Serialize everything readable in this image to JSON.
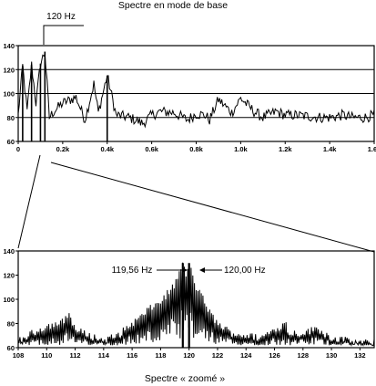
{
  "chart_data": [
    {
      "type": "line",
      "title": "Spectre en mode de base",
      "xlabel": "",
      "ylabel": "",
      "xlim": [
        0,
        1600
      ],
      "ylim": [
        60,
        140
      ],
      "x_tick_labels": [
        "0",
        "0.2k",
        "0.4k",
        "0.6k",
        "0.8k",
        "1.0k",
        "1.2k",
        "1.4k",
        "1.6k"
      ],
      "y_tick_labels": [
        "60",
        "80",
        "100",
        "120",
        "140"
      ],
      "reference_lines_y": [
        80,
        100,
        120
      ],
      "grid": false,
      "annotations": [
        {
          "text": "120 Hz",
          "x": 120
        }
      ],
      "series": [
        {
          "x": [
            0,
            20,
            40,
            60,
            80,
            100,
            120,
            140,
            160,
            200,
            260,
            300,
            340,
            360,
            400,
            440,
            500,
            560,
            600,
            640,
            700,
            760,
            800,
            840,
            860,
            900,
            960,
            1000,
            1060,
            1100,
            1160,
            1200,
            1240,
            1300,
            1360,
            1400,
            1460,
            1500,
            1560,
            1600
          ],
          "values": [
            82,
            123,
            85,
            124,
            92,
            125,
            135,
            80,
            85,
            92,
            97,
            78,
            108,
            84,
            115,
            82,
            80,
            75,
            82,
            85,
            84,
            78,
            83,
            82,
            78,
            95,
            84,
            96,
            85,
            80,
            85,
            82,
            82,
            81,
            80,
            80,
            82,
            80,
            80,
            82
          ]
        }
      ]
    },
    {
      "type": "line",
      "title": "Spectre « zoomé »",
      "xlabel": "",
      "ylabel": "",
      "xlim": [
        108,
        133
      ],
      "ylim": [
        60,
        140
      ],
      "x_tick_labels": [
        "108",
        "110",
        "112",
        "114",
        "116",
        "118",
        "120",
        "122",
        "124",
        "126",
        "128",
        "130",
        "132"
      ],
      "y_tick_labels": [
        "60",
        "80",
        "100",
        "120",
        "140"
      ],
      "grid": false,
      "annotations": [
        {
          "text": "119,56 Hz",
          "x": 119.56
        },
        {
          "text": "120,00 Hz",
          "x": 120.0
        }
      ],
      "series": [
        {
          "x": [
            108,
            109,
            110,
            111,
            111.6,
            112,
            113,
            114,
            115,
            116,
            116.6,
            117,
            117.6,
            118,
            118.5,
            119,
            119.56,
            119.8,
            120,
            120.4,
            121,
            121.5,
            122,
            123,
            124,
            125,
            126,
            126.8,
            127,
            128,
            129,
            130,
            131,
            132,
            133
          ],
          "values": [
            65,
            72,
            78,
            80,
            88,
            75,
            70,
            66,
            70,
            80,
            85,
            90,
            95,
            98,
            105,
            112,
            130,
            118,
            130,
            112,
            100,
            88,
            80,
            72,
            70,
            68,
            75,
            80,
            72,
            72,
            76,
            68,
            66,
            64,
            64
          ]
        }
      ]
    }
  ]
}
